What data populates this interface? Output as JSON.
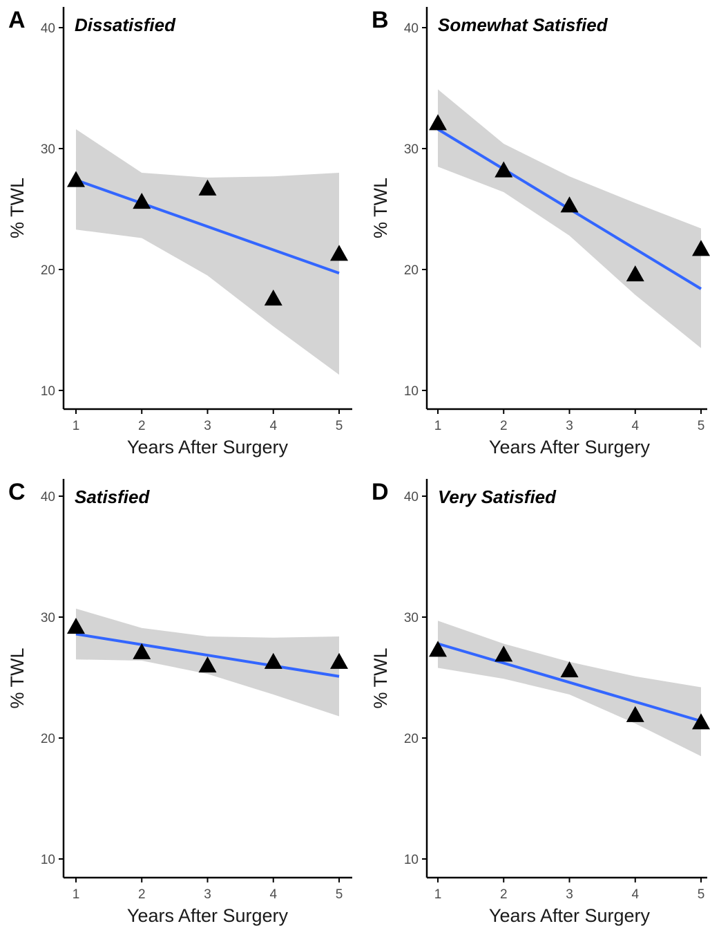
{
  "chart_data": [
    {
      "type": "scatter",
      "panel": "A",
      "title": "Dissatisfied",
      "xlabel": "Years After Surgery",
      "ylabel": "% TWL",
      "xlim": [
        1,
        5
      ],
      "ylim": [
        10,
        40
      ],
      "xticks": [
        1,
        2,
        3,
        4,
        5
      ],
      "yticks": [
        10,
        20,
        30,
        40
      ],
      "x": [
        1,
        2,
        3,
        4,
        5
      ],
      "values": [
        27.4,
        25.6,
        26.7,
        17.6,
        21.3
      ],
      "fit": {
        "x": [
          1,
          5
        ],
        "y": [
          27.4,
          19.7
        ]
      },
      "ci": {
        "x": [
          1,
          2,
          3,
          4,
          5
        ],
        "upper": [
          31.6,
          28.0,
          27.6,
          27.7,
          28.0
        ],
        "lower": [
          23.3,
          22.6,
          19.5,
          15.3,
          11.3
        ]
      },
      "marker": "triangle",
      "grid": false
    },
    {
      "type": "scatter",
      "panel": "B",
      "title": "Somewhat Satisfied",
      "xlabel": "Years After Surgery",
      "ylabel": "% TWL",
      "xlim": [
        1,
        5
      ],
      "ylim": [
        10,
        40
      ],
      "xticks": [
        1,
        2,
        3,
        4,
        5
      ],
      "yticks": [
        10,
        20,
        30,
        40
      ],
      "x": [
        1,
        2,
        3,
        4,
        5
      ],
      "values": [
        32.1,
        28.2,
        25.3,
        19.6,
        21.7
      ],
      "fit": {
        "x": [
          1,
          5
        ],
        "y": [
          31.6,
          18.4
        ]
      },
      "ci": {
        "x": [
          1,
          2,
          3,
          4,
          5
        ],
        "upper": [
          34.9,
          30.4,
          27.7,
          25.5,
          23.4
        ],
        "lower": [
          28.5,
          26.4,
          22.8,
          17.9,
          13.5
        ]
      },
      "marker": "triangle",
      "grid": false
    },
    {
      "type": "scatter",
      "panel": "C",
      "title": "Satisfied",
      "xlabel": "Years After Surgery",
      "ylabel": "% TWL",
      "xlim": [
        1,
        5
      ],
      "ylim": [
        10,
        40
      ],
      "xticks": [
        1,
        2,
        3,
        4,
        5
      ],
      "yticks": [
        10,
        20,
        30,
        40
      ],
      "x": [
        1,
        2,
        3,
        4,
        5
      ],
      "values": [
        29.2,
        27.1,
        26.0,
        26.3,
        26.3
      ],
      "fit": {
        "x": [
          1,
          5
        ],
        "y": [
          28.6,
          25.1
        ]
      },
      "ci": {
        "x": [
          1,
          2,
          3,
          4,
          5
        ],
        "upper": [
          30.7,
          29.1,
          28.4,
          28.3,
          28.4
        ],
        "lower": [
          26.5,
          26.4,
          25.3,
          23.6,
          21.8
        ]
      },
      "marker": "triangle",
      "grid": false
    },
    {
      "type": "scatter",
      "panel": "D",
      "title": "Very Satisfied",
      "xlabel": "Years After Surgery",
      "ylabel": "% TWL",
      "xlim": [
        1,
        5
      ],
      "ylim": [
        10,
        40
      ],
      "xticks": [
        1,
        2,
        3,
        4,
        5
      ],
      "yticks": [
        10,
        20,
        30,
        40
      ],
      "x": [
        1,
        2,
        3,
        4,
        5
      ],
      "values": [
        27.3,
        26.9,
        25.6,
        21.9,
        21.3
      ],
      "fit": {
        "x": [
          1,
          5
        ],
        "y": [
          27.8,
          21.4
        ]
      },
      "ci": {
        "x": [
          1,
          2,
          3,
          4,
          5
        ],
        "upper": [
          29.7,
          27.8,
          26.3,
          25.1,
          24.2
        ],
        "lower": [
          25.8,
          24.9,
          23.6,
          21.2,
          18.5
        ]
      },
      "marker": "triangle",
      "grid": false
    }
  ],
  "colors": {
    "fit_line": "#3366ff",
    "ci_band": "#d4d4d4",
    "markers": "#000000",
    "axes": "#000000",
    "tick_labels": "#4d4d4d"
  }
}
